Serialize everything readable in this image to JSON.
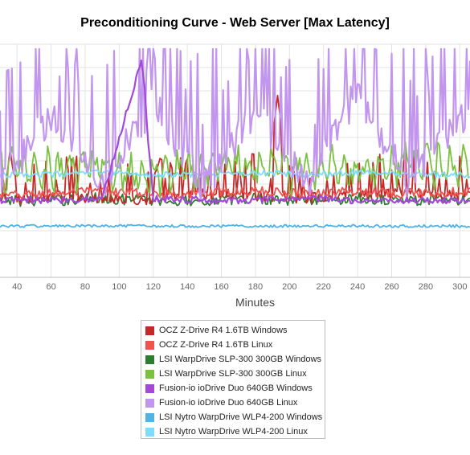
{
  "chart_data": {
    "type": "line",
    "title": "Preconditioning Curve - Web Server [Max Latency]",
    "xlabel": "Minutes",
    "ylabel": "",
    "x_ticks": [
      40,
      60,
      80,
      100,
      120,
      140,
      160,
      180,
      200,
      220,
      240,
      260,
      280,
      300
    ],
    "grid": true,
    "legend_position": "bottom",
    "series": [
      {
        "name": "OCZ Z-Drive R4 1.6TB Windows",
        "color": "#c62828",
        "style": "spiky",
        "baseline": 0.34,
        "spike": 0.13,
        "tall_at": [
          [
            36,
            0.55
          ],
          [
            193,
            0.78
          ]
        ],
        "x": [
          30,
          60,
          90,
          120,
          150,
          180,
          210,
          240,
          270,
          306
        ],
        "y": [
          0.32,
          0.35,
          0.34,
          0.33,
          0.36,
          0.35,
          0.34,
          0.35,
          0.36,
          0.35
        ]
      },
      {
        "name": "OCZ Z-Drive R4 1.6TB Linux",
        "color": "#ef5350",
        "style": "noise",
        "baseline": 0.36,
        "spike": 0.04,
        "tall_at": [],
        "x": [
          30,
          60,
          90,
          120,
          150,
          180,
          210,
          240,
          270,
          306
        ],
        "y": [
          0.35,
          0.36,
          0.37,
          0.36,
          0.36,
          0.37,
          0.36,
          0.37,
          0.36,
          0.37
        ]
      },
      {
        "name": "LSI WarpDrive SLP-300 300GB Windows",
        "color": "#2e7d32",
        "style": "noise",
        "baseline": 0.33,
        "spike": 0.05,
        "tall_at": [],
        "x": [
          30,
          60,
          90,
          120,
          150,
          180,
          210,
          240,
          270,
          306
        ],
        "y": [
          0.33,
          0.33,
          0.34,
          0.33,
          0.33,
          0.34,
          0.33,
          0.34,
          0.33,
          0.33
        ]
      },
      {
        "name": "LSI WarpDrive SLP-300 300GB Linux",
        "color": "#7ac142",
        "style": "wave",
        "baseline": 0.47,
        "spike": 0.18,
        "tall_at": [],
        "x": [
          30,
          60,
          90,
          120,
          150,
          180,
          210,
          240,
          270,
          306
        ],
        "y": [
          0.47,
          0.45,
          0.48,
          0.44,
          0.47,
          0.49,
          0.46,
          0.47,
          0.5,
          0.47
        ]
      },
      {
        "name": "Fusion-io ioDrive Duo 640GB Windows",
        "color": "#a349d8",
        "style": "peak",
        "baseline": 0.33,
        "spike": 0.03,
        "tall_at": [
          [
            113,
            0.93
          ]
        ],
        "x": [
          30,
          60,
          90,
          113,
          120,
          150,
          180,
          210,
          240,
          270,
          306
        ],
        "y": [
          0.33,
          0.33,
          0.34,
          0.93,
          0.34,
          0.33,
          0.33,
          0.34,
          0.33,
          0.33,
          0.33
        ]
      },
      {
        "name": "Fusion-io ioDrive Duo 640GB Linux",
        "color": "#c295ee",
        "style": "spiky",
        "baseline": 0.38,
        "spike": 0.42,
        "tall_at": [],
        "x": [
          30,
          60,
          90,
          120,
          150,
          180,
          210,
          240,
          270,
          306
        ],
        "y": [
          0.38,
          0.7,
          0.4,
          0.75,
          0.38,
          0.72,
          0.39,
          0.8,
          0.4,
          0.71
        ]
      },
      {
        "name": "LSI Nytro WarpDrive WLP4-200 Windows",
        "color": "#4fb3e8",
        "style": "flat",
        "baseline": 0.22,
        "spike": 0.012,
        "tall_at": [],
        "x": [
          30,
          60,
          90,
          120,
          150,
          180,
          210,
          240,
          270,
          306
        ],
        "y": [
          0.22,
          0.22,
          0.22,
          0.22,
          0.22,
          0.22,
          0.22,
          0.22,
          0.22,
          0.22
        ]
      },
      {
        "name": "LSI Nytro WarpDrive WLP4-200 Linux",
        "color": "#7fdcff",
        "style": "noise",
        "baseline": 0.44,
        "spike": 0.025,
        "tall_at": [],
        "x": [
          30,
          60,
          90,
          120,
          150,
          180,
          210,
          240,
          270,
          306
        ],
        "y": [
          0.44,
          0.44,
          0.45,
          0.44,
          0.44,
          0.45,
          0.44,
          0.45,
          0.44,
          0.44
        ]
      }
    ]
  }
}
